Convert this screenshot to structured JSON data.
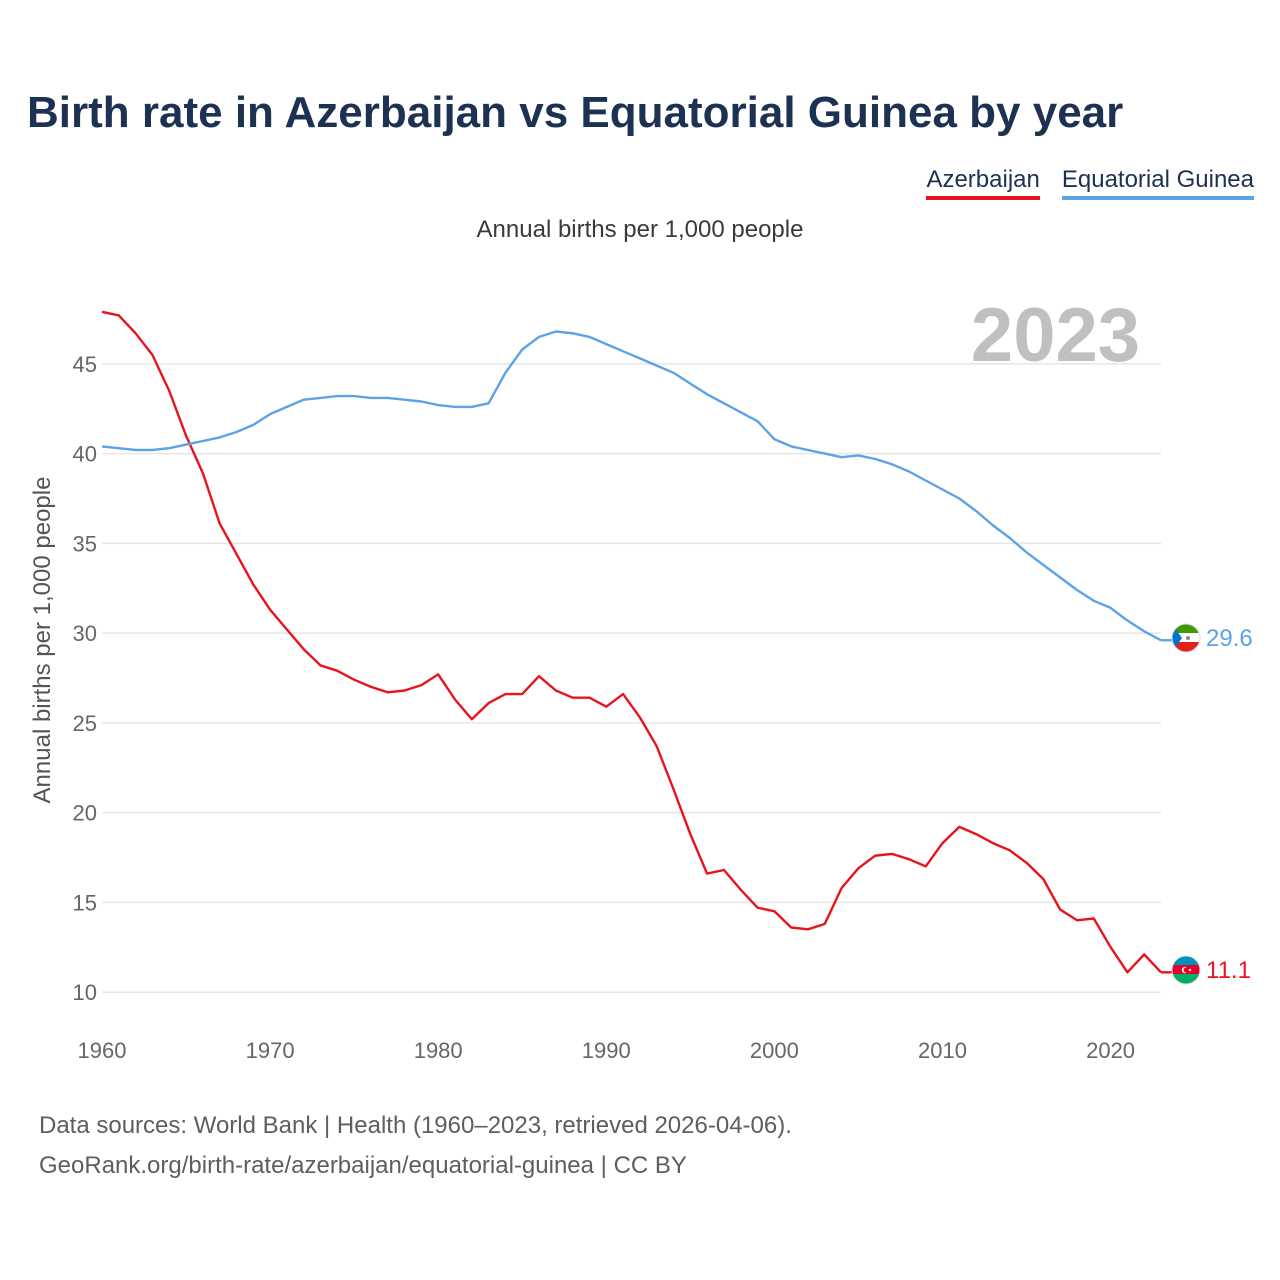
{
  "chart_data": {
    "type": "line",
    "title": "Birth rate in Azerbaijan vs Equatorial Guinea by year",
    "subtitle": "Annual births per 1,000 people",
    "ylabel": "Annual births per 1,000 people",
    "xlabel": "",
    "year_stamp": "2023",
    "xlim": [
      1960,
      2023
    ],
    "ylim": [
      8.5,
      48.5
    ],
    "yticks": [
      10,
      15,
      20,
      25,
      30,
      35,
      40,
      45
    ],
    "xticks": [
      1960,
      1970,
      1980,
      1990,
      2000,
      2010,
      2020
    ],
    "grid": true,
    "legend": "top-right",
    "x": [
      1960,
      1961,
      1962,
      1963,
      1964,
      1965,
      1966,
      1967,
      1968,
      1969,
      1970,
      1971,
      1972,
      1973,
      1974,
      1975,
      1976,
      1977,
      1978,
      1979,
      1980,
      1981,
      1982,
      1983,
      1984,
      1985,
      1986,
      1987,
      1988,
      1989,
      1990,
      1991,
      1992,
      1993,
      1994,
      1995,
      1996,
      1997,
      1998,
      1999,
      2000,
      2001,
      2002,
      2003,
      2004,
      2005,
      2006,
      2007,
      2008,
      2009,
      2010,
      2011,
      2012,
      2013,
      2014,
      2015,
      2016,
      2017,
      2018,
      2019,
      2020,
      2021,
      2022,
      2023
    ],
    "series": [
      {
        "name": "Azerbaijan",
        "color": "#e8141c",
        "end_label": "11.1",
        "values": [
          47.9,
          47.7,
          46.7,
          45.5,
          43.5,
          41.0,
          38.9,
          36.1,
          34.4,
          32.7,
          31.3,
          30.2,
          29.1,
          28.2,
          27.9,
          27.4,
          27.0,
          26.7,
          26.8,
          27.1,
          27.7,
          26.3,
          25.2,
          26.1,
          26.6,
          26.6,
          27.6,
          26.8,
          26.4,
          26.4,
          25.9,
          26.6,
          25.3,
          23.7,
          21.3,
          18.8,
          16.6,
          16.8,
          15.7,
          14.7,
          14.5,
          13.6,
          13.5,
          13.8,
          15.8,
          16.9,
          17.6,
          17.7,
          17.4,
          17.0,
          18.3,
          19.2,
          18.8,
          18.3,
          17.9,
          17.2,
          16.3,
          14.6,
          14.0,
          14.1,
          12.5,
          11.1,
          12.1,
          11.1
        ]
      },
      {
        "name": "Equatorial Guinea",
        "color": "#5ba3e6",
        "end_label": "29.6",
        "values": [
          40.4,
          40.3,
          40.2,
          40.2,
          40.3,
          40.5,
          40.7,
          40.9,
          41.2,
          41.6,
          42.2,
          42.6,
          43.0,
          43.1,
          43.2,
          43.2,
          43.1,
          43.1,
          43.0,
          42.9,
          42.7,
          42.6,
          42.6,
          42.8,
          44.5,
          45.8,
          46.5,
          46.8,
          46.7,
          46.5,
          46.1,
          45.7,
          45.3,
          44.9,
          44.5,
          43.9,
          43.3,
          42.8,
          42.3,
          41.8,
          40.8,
          40.4,
          40.2,
          40.0,
          39.8,
          39.9,
          39.7,
          39.4,
          39.0,
          38.5,
          38.0,
          37.5,
          36.8,
          36.0,
          35.3,
          34.5,
          33.8,
          33.1,
          32.4,
          31.8,
          31.4,
          30.7,
          30.1,
          29.6
        ]
      }
    ]
  },
  "legend": {
    "items": [
      "Azerbaijan",
      "Equatorial Guinea"
    ]
  },
  "footer": {
    "line1": "Data sources: World Bank | Health (1960–2023, retrieved 2026-04-06).",
    "line2": "GeoRank.org/birth-rate/azerbaijan/equatorial-guinea | CC BY"
  }
}
